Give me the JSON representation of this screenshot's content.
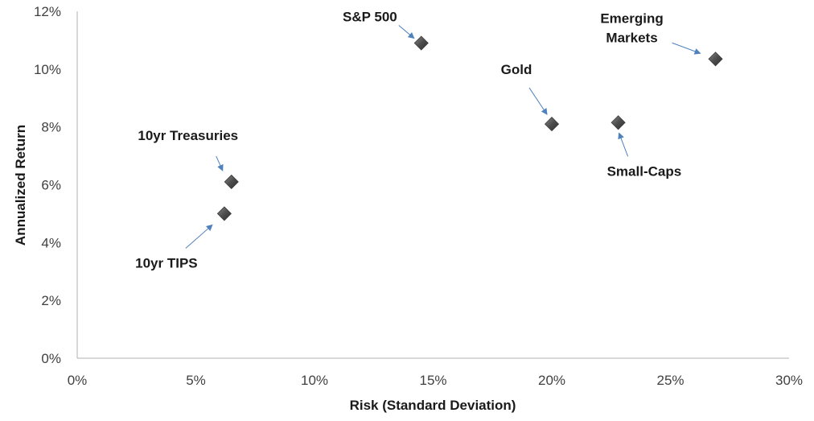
{
  "chart_data": {
    "type": "scatter",
    "title": "",
    "xlabel": "Risk (Standard Deviation)",
    "ylabel": "Annualized Return",
    "xlim": [
      0,
      30
    ],
    "ylim": [
      0,
      12
    ],
    "x_unit": "%",
    "y_unit": "%",
    "x_ticks": [
      "0%",
      "5%",
      "10%",
      "15%",
      "20%",
      "25%",
      "30%"
    ],
    "y_ticks": [
      "0%",
      "2%",
      "4%",
      "6%",
      "8%",
      "10%",
      "12%"
    ],
    "grid": false,
    "legend": "none",
    "marker": "diamond",
    "marker_color": "#4d4d4d",
    "leader_color": "#4f81bd",
    "points": [
      {
        "label": "S&P 500",
        "x": 14.5,
        "y": 10.9
      },
      {
        "label": "Emerging Markets",
        "x": 26.9,
        "y": 10.35
      },
      {
        "label": "Gold",
        "x": 20.0,
        "y": 8.1
      },
      {
        "label": "Small-Caps",
        "x": 22.8,
        "y": 8.15
      },
      {
        "label": "10yr Treasuries",
        "x": 6.5,
        "y": 6.1
      },
      {
        "label": "10yr TIPS",
        "x": 6.2,
        "y": 5.0
      }
    ]
  }
}
